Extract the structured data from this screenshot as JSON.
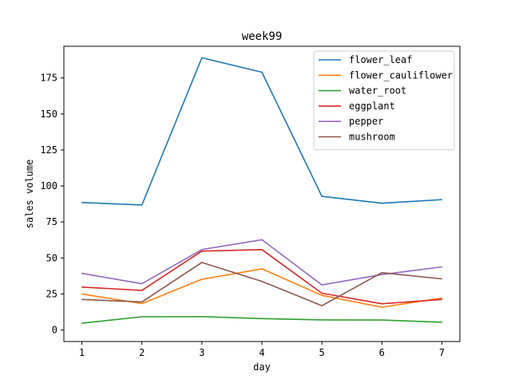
{
  "chart_data": {
    "type": "line",
    "title": "week99",
    "xlabel": "day",
    "ylabel": "sales volume",
    "x": [
      1,
      2,
      3,
      4,
      5,
      6,
      7
    ],
    "xticks": [
      "1",
      "2",
      "3",
      "4",
      "5",
      "6",
      "7"
    ],
    "yticks": [
      "0",
      "25",
      "50",
      "75",
      "100",
      "125",
      "150",
      "175"
    ],
    "ylim": [
      -8,
      197
    ],
    "xlim": [
      0.7,
      7.3
    ],
    "grid": false,
    "legend_position": "top-right",
    "series": [
      {
        "name": "flower_leaf",
        "color": "#1f77b4",
        "values": [
          88.5,
          86.8,
          189.0,
          179.0,
          92.8,
          88.0,
          90.5
        ]
      },
      {
        "name": "flower_cauliflower",
        "color": "#ff7f0e",
        "values": [
          25.0,
          18.3,
          35.2,
          42.5,
          24.0,
          15.8,
          22.2
        ]
      },
      {
        "name": "water_root",
        "color": "#2ca02c",
        "values": [
          4.7,
          9.2,
          9.3,
          7.9,
          7.0,
          6.9,
          5.4
        ]
      },
      {
        "name": "eggplant",
        "color": "#d62728",
        "values": [
          29.8,
          27.5,
          54.8,
          55.8,
          25.5,
          18.2,
          21.2
        ]
      },
      {
        "name": "pepper",
        "color": "#9467bd",
        "values": [
          39.3,
          32.1,
          55.8,
          62.7,
          31.3,
          38.5,
          43.8
        ]
      },
      {
        "name": "mushroom",
        "color": "#8c564b",
        "values": [
          21.2,
          19.5,
          46.9,
          33.8,
          16.9,
          39.8,
          35.5
        ]
      }
    ]
  }
}
